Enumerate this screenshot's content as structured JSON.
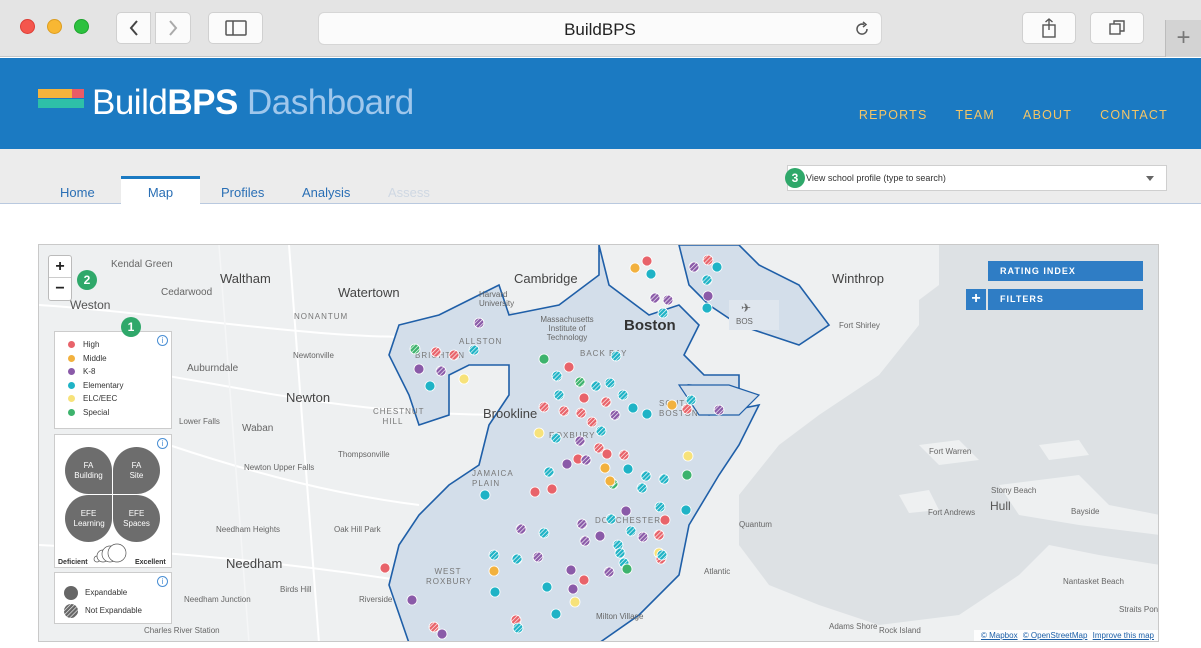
{
  "browser": {
    "url_title": "BuildBPS"
  },
  "header": {
    "logo": {
      "word1": "Build",
      "word2": "BPS",
      "word3": "Dashboard"
    },
    "nav": [
      "REPORTS",
      "TEAM",
      "ABOUT",
      "CONTACT"
    ]
  },
  "tabs": {
    "home": "Home",
    "map": "Map",
    "profiles": "Profiles",
    "analysis": "Analysis",
    "assess": "Assess"
  },
  "school_select": {
    "placeholder": "View school profile (type to search)",
    "step": "3"
  },
  "map": {
    "zoom_in": "+",
    "zoom_out": "−",
    "zoom_step": "2",
    "legend_step": "1",
    "labels": {
      "kendal_green": "Kendal Green",
      "waltham": "Waltham",
      "cambridge": "Cambridge",
      "winthrop": "Winthrop",
      "cedarwood": "Cedarwood",
      "watertown": "Watertown",
      "weston": "Weston",
      "nonantum": "NONANTUM",
      "harvard": "Harvard University",
      "mit": "Massachusetts Institute of Technology",
      "boston": "Boston",
      "bos": "BOS",
      "fort_shirley": "Fort Shirley",
      "allston": "ALLSTON",
      "brighton": "BRIGHTON",
      "back_bay": "BACK BAY",
      "newtonville": "Newtonville",
      "auburndale": "Auburndale",
      "newton": "Newton",
      "chestnut_hill": "CHESTNUT HILL",
      "brookline": "Brookline",
      "south_boston": "SOUTH BOSTON",
      "lower_falls": "Lower Falls",
      "waban": "Waban",
      "roxbury": "ROXBURY",
      "thompsonville": "Thompsonville",
      "jamaica_plain": "JAMAICA PLAIN",
      "newton_upper_falls": "Newton Upper Falls",
      "fort_warren": "Fort Warren",
      "stony_beach": "Stony Beach",
      "hull": "Hull",
      "fort_andrews": "Fort Andrews",
      "bayside": "Bayside",
      "dorchester": "DORCHESTER",
      "quantum": "Quantum",
      "needham_heights": "Needham Heights",
      "oak_hill_park": "Oak Hill Park",
      "needham": "Needham",
      "west_roxbury": "WEST ROXBURY",
      "atlantic": "Atlantic",
      "birds_hill": "Birds Hill",
      "riverside": "Riverside",
      "nantasket_beach": "Nantasket Beach",
      "needham_junction": "Needham Junction",
      "milton_village": "Milton Village",
      "adams_shore": "Adams Shore",
      "rock_island": "Rock Island",
      "straits": "Straits Pond",
      "charles_river": "Charles River Station"
    },
    "legend_levels": [
      {
        "label": "High",
        "color": "#e8636a"
      },
      {
        "label": "Middle",
        "color": "#f2b13e"
      },
      {
        "label": "K-8",
        "color": "#8a5aa8"
      },
      {
        "label": "Elementary",
        "color": "#1fb3c6"
      },
      {
        "label": "ELC/EEC",
        "color": "#f7e27a"
      },
      {
        "label": "Special",
        "color": "#3db36d"
      }
    ],
    "legend_petals": {
      "fa_building": "FA Building",
      "fa_site": "FA Site",
      "efe_learning": "EFE Learning",
      "efe_spaces": "EFE Spaces",
      "deficient": "Deficient",
      "excellent": "Excellent"
    },
    "legend_expand": {
      "expandable": "Expandable",
      "not_expandable": "Not Expandable"
    },
    "rating_index": "RATING INDEX",
    "filters": "FILTERS",
    "attribution": {
      "mapbox": "© Mapbox",
      "osm": "© OpenStreetMap",
      "improve": "Improve this map"
    },
    "colors": {
      "water": "#dde1e4",
      "land": "#eef0f1",
      "boston_fill": "#d3deea",
      "boundary": "#1f5fa8"
    }
  }
}
